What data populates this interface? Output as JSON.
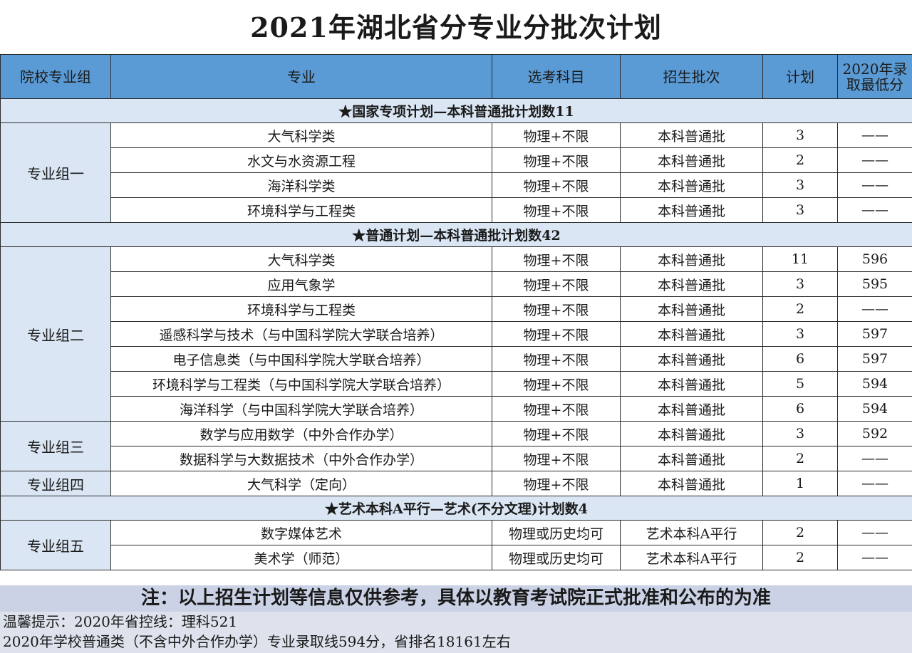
{
  "title": "2021年湖北省分专业分批次计划",
  "headers": [
    "院校专业组",
    "专业",
    "选考科目",
    "招生批次",
    "计划",
    "2020年录",
    "取最低分"
  ],
  "sections": [
    {
      "heading": "★国家专项计划—本科普通批计划数11",
      "groups": [
        {
          "name": "专业组一",
          "rows": [
            {
              "major": "大气科学类",
              "subject": "物理+不限",
              "batch": "本科普通批",
              "plan": "3",
              "min_score": "——"
            },
            {
              "major": "水文与水资源工程",
              "subject": "物理+不限",
              "batch": "本科普通批",
              "plan": "2",
              "min_score": "——"
            },
            {
              "major": "海洋科学类",
              "subject": "物理+不限",
              "batch": "本科普通批",
              "plan": "3",
              "min_score": "——"
            },
            {
              "major": "环境科学与工程类",
              "subject": "物理+不限",
              "batch": "本科普通批",
              "plan": "3",
              "min_score": "——"
            }
          ]
        }
      ]
    },
    {
      "heading": "★普通计划—本科普通批计划数42",
      "groups": [
        {
          "name": "专业组二",
          "rows": [
            {
              "major": "大气科学类",
              "subject": "物理+不限",
              "batch": "本科普通批",
              "plan": "11",
              "min_score": "596"
            },
            {
              "major": "应用气象学",
              "subject": "物理+不限",
              "batch": "本科普通批",
              "plan": "3",
              "min_score": "595"
            },
            {
              "major": "环境科学与工程类",
              "subject": "物理+不限",
              "batch": "本科普通批",
              "plan": "2",
              "min_score": "——"
            },
            {
              "major": "遥感科学与技术（与中国科学院大学联合培养）",
              "subject": "物理+不限",
              "batch": "本科普通批",
              "plan": "3",
              "min_score": "597"
            },
            {
              "major": "电子信息类（与中国科学院大学联合培养）",
              "subject": "物理+不限",
              "batch": "本科普通批",
              "plan": "6",
              "min_score": "597"
            },
            {
              "major": "环境科学与工程类（与中国科学院大学联合培养）",
              "subject": "物理+不限",
              "batch": "本科普通批",
              "plan": "5",
              "min_score": "594"
            },
            {
              "major": "海洋科学（与中国科学院大学联合培养）",
              "subject": "物理+不限",
              "batch": "本科普通批",
              "plan": "6",
              "min_score": "594"
            }
          ]
        },
        {
          "name": "专业组三",
          "rows": [
            {
              "major": "数学与应用数学（中外合作办学）",
              "subject": "物理+不限",
              "batch": "本科普通批",
              "plan": "3",
              "min_score": "592"
            },
            {
              "major": "数据科学与大数据技术（中外合作办学）",
              "subject": "物理+不限",
              "batch": "本科普通批",
              "plan": "2",
              "min_score": "——"
            }
          ]
        },
        {
          "name": "专业组四",
          "rows": [
            {
              "major": "大气科学（定向）",
              "subject": "物理+不限",
              "batch": "本科普通批",
              "plan": "1",
              "min_score": "——"
            }
          ]
        }
      ]
    },
    {
      "heading": "★艺术本科A平行—艺术(不分文理)计划数4",
      "groups": [
        {
          "name": "专业组五",
          "rows": [
            {
              "major": "数字媒体艺术",
              "subject": "物理或历史均可",
              "batch": "艺术本科A平行",
              "plan": "2",
              "min_score": "——"
            },
            {
              "major": "美术学（师范）",
              "subject": "物理或历史均可",
              "batch": "艺术本科A平行",
              "plan": "2",
              "min_score": "——"
            }
          ]
        }
      ]
    }
  ],
  "note": "注：以上招生计划等信息仅供参考，具体以教育考试院正式批准和公布的为准",
  "tips": [
    "温馨提示：2020年省控线：理科521",
    "2020年学校普通类（不含中外合作办学）专业录取线594分，省排名18161左右"
  ]
}
